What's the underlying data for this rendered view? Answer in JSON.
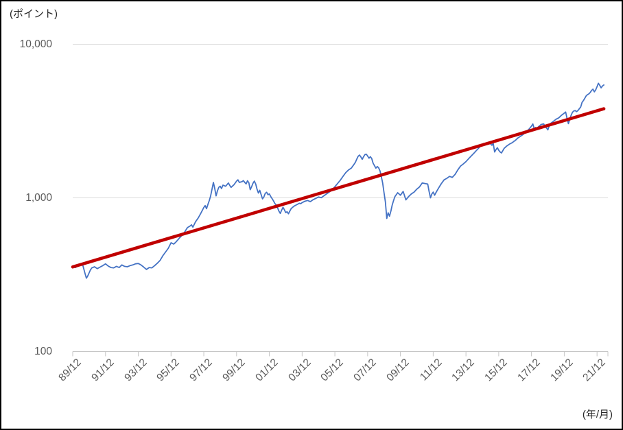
{
  "labels": {
    "y_unit": "(ポイント)",
    "x_unit": "(年/月)"
  },
  "chart_data": {
    "type": "line",
    "title": "",
    "legend": "none",
    "y_axis": {
      "scale": "log",
      "unit_label": "(ポイント)",
      "range": [
        100,
        10000
      ],
      "ticks": [
        {
          "value": 100,
          "label": "100"
        },
        {
          "value": 1000,
          "label": "1,000"
        },
        {
          "value": 10000,
          "label": "10,000"
        }
      ]
    },
    "x_axis": {
      "unit_label": "(年/月)",
      "t_unit": "months since 89/12",
      "tick_interval_months": 24,
      "tick_labels": [
        "89/12",
        "91/12",
        "93/12",
        "95/12",
        "97/12",
        "99/12",
        "01/12",
        "03/12",
        "05/12",
        "07/12",
        "09/12",
        "11/12",
        "13/12",
        "15/12",
        "17/12",
        "19/12",
        "21/12"
      ]
    },
    "grid": {
      "horizontal": true,
      "vertical": false
    },
    "series": [
      {
        "name": "index-line",
        "color": "#4472C4",
        "style": "jagged monthly line",
        "points": [
          [
            0,
            357
          ],
          [
            2,
            352
          ],
          [
            4,
            362
          ],
          [
            6,
            372
          ],
          [
            7,
            375
          ],
          [
            8,
            348
          ],
          [
            9,
            322
          ],
          [
            10,
            300
          ],
          [
            11,
            310
          ],
          [
            12,
            325
          ],
          [
            13,
            340
          ],
          [
            14,
            350
          ],
          [
            16,
            356
          ],
          [
            18,
            346
          ],
          [
            20,
            354
          ],
          [
            22,
            362
          ],
          [
            24,
            372
          ],
          [
            26,
            360
          ],
          [
            28,
            352
          ],
          [
            30,
            350
          ],
          [
            32,
            358
          ],
          [
            34,
            352
          ],
          [
            36,
            366
          ],
          [
            38,
            358
          ],
          [
            40,
            356
          ],
          [
            42,
            362
          ],
          [
            44,
            366
          ],
          [
            46,
            372
          ],
          [
            48,
            374
          ],
          [
            50,
            366
          ],
          [
            52,
            354
          ],
          [
            54,
            342
          ],
          [
            56,
            352
          ],
          [
            58,
            350
          ],
          [
            60,
            362
          ],
          [
            62,
            376
          ],
          [
            64,
            392
          ],
          [
            66,
            420
          ],
          [
            68,
            444
          ],
          [
            70,
            470
          ],
          [
            72,
            510
          ],
          [
            74,
            500
          ],
          [
            76,
            520
          ],
          [
            78,
            546
          ],
          [
            80,
            570
          ],
          [
            82,
            600
          ],
          [
            84,
            640
          ],
          [
            86,
            656
          ],
          [
            87,
            668
          ],
          [
            88,
            645
          ],
          [
            90,
            700
          ],
          [
            92,
            742
          ],
          [
            94,
            800
          ],
          [
            96,
            865
          ],
          [
            97,
            890
          ],
          [
            98,
            850
          ],
          [
            99,
            905
          ],
          [
            100,
            960
          ],
          [
            101,
            1030
          ],
          [
            102,
            1140
          ],
          [
            103,
            1260
          ],
          [
            104,
            1150
          ],
          [
            105,
            1030
          ],
          [
            106,
            1110
          ],
          [
            107,
            1170
          ],
          [
            108,
            1190
          ],
          [
            109,
            1150
          ],
          [
            110,
            1210
          ],
          [
            112,
            1190
          ],
          [
            114,
            1250
          ],
          [
            115,
            1205
          ],
          [
            116,
            1170
          ],
          [
            118,
            1215
          ],
          [
            120,
            1285
          ],
          [
            121,
            1310
          ],
          [
            122,
            1260
          ],
          [
            124,
            1275
          ],
          [
            125,
            1295
          ],
          [
            126,
            1260
          ],
          [
            127,
            1232
          ],
          [
            128,
            1292
          ],
          [
            129,
            1255
          ],
          [
            130,
            1130
          ],
          [
            131,
            1180
          ],
          [
            132,
            1245
          ],
          [
            133,
            1285
          ],
          [
            134,
            1230
          ],
          [
            135,
            1140
          ],
          [
            136,
            1075
          ],
          [
            137,
            1120
          ],
          [
            138,
            1050
          ],
          [
            139,
            985
          ],
          [
            140,
            1015
          ],
          [
            141,
            1070
          ],
          [
            142,
            1088
          ],
          [
            143,
            1048
          ],
          [
            144,
            1060
          ],
          [
            145,
            1020
          ],
          [
            146,
            990
          ],
          [
            147,
            958
          ],
          [
            148,
            920
          ],
          [
            149,
            900
          ],
          [
            150,
            862
          ],
          [
            151,
            820
          ],
          [
            152,
            792
          ],
          [
            153,
            832
          ],
          [
            154,
            868
          ],
          [
            155,
            838
          ],
          [
            156,
            802
          ],
          [
            157,
            812
          ],
          [
            158,
            788
          ],
          [
            159,
            820
          ],
          [
            160,
            852
          ],
          [
            162,
            882
          ],
          [
            164,
            902
          ],
          [
            166,
            922
          ],
          [
            167,
            916
          ],
          [
            168,
            932
          ],
          [
            170,
            950
          ],
          [
            172,
            962
          ],
          [
            174,
            945
          ],
          [
            176,
            972
          ],
          [
            178,
            992
          ],
          [
            180,
            1012
          ],
          [
            182,
            1002
          ],
          [
            184,
            1032
          ],
          [
            186,
            1062
          ],
          [
            188,
            1092
          ],
          [
            190,
            1130
          ],
          [
            192,
            1182
          ],
          [
            194,
            1242
          ],
          [
            196,
            1302
          ],
          [
            198,
            1382
          ],
          [
            200,
            1462
          ],
          [
            202,
            1520
          ],
          [
            204,
            1562
          ],
          [
            206,
            1650
          ],
          [
            207,
            1702
          ],
          [
            208,
            1782
          ],
          [
            209,
            1862
          ],
          [
            210,
            1900
          ],
          [
            211,
            1850
          ],
          [
            212,
            1782
          ],
          [
            213,
            1852
          ],
          [
            214,
            1912
          ],
          [
            215,
            1922
          ],
          [
            216,
            1872
          ],
          [
            217,
            1812
          ],
          [
            218,
            1852
          ],
          [
            219,
            1802
          ],
          [
            220,
            1680
          ],
          [
            221,
            1620
          ],
          [
            222,
            1560
          ],
          [
            223,
            1600
          ],
          [
            224,
            1570
          ],
          [
            225,
            1500
          ],
          [
            226,
            1380
          ],
          [
            227,
            1250
          ],
          [
            228,
            1080
          ],
          [
            229,
            940
          ],
          [
            230,
            735
          ],
          [
            231,
            800
          ],
          [
            232,
            760
          ],
          [
            233,
            820
          ],
          [
            234,
            900
          ],
          [
            235,
            960
          ],
          [
            236,
            1020
          ],
          [
            238,
            1080
          ],
          [
            240,
            1040
          ],
          [
            242,
            1100
          ],
          [
            244,
            970
          ],
          [
            246,
            1020
          ],
          [
            248,
            1060
          ],
          [
            250,
            1090
          ],
          [
            252,
            1140
          ],
          [
            254,
            1180
          ],
          [
            256,
            1250
          ],
          [
            258,
            1240
          ],
          [
            260,
            1230
          ],
          [
            261,
            1100
          ],
          [
            262,
            1000
          ],
          [
            263,
            1060
          ],
          [
            264,
            1090
          ],
          [
            265,
            1040
          ],
          [
            266,
            1080
          ],
          [
            267,
            1120
          ],
          [
            268,
            1160
          ],
          [
            270,
            1240
          ],
          [
            272,
            1310
          ],
          [
            274,
            1340
          ],
          [
            276,
            1380
          ],
          [
            278,
            1360
          ],
          [
            280,
            1420
          ],
          [
            282,
            1520
          ],
          [
            284,
            1610
          ],
          [
            286,
            1660
          ],
          [
            288,
            1720
          ],
          [
            290,
            1800
          ],
          [
            292,
            1880
          ],
          [
            294,
            1960
          ],
          [
            296,
            2050
          ],
          [
            298,
            2140
          ],
          [
            300,
            2220
          ],
          [
            301,
            2260
          ],
          [
            302,
            2230
          ],
          [
            303,
            2270
          ],
          [
            304,
            2240
          ],
          [
            305,
            2280
          ],
          [
            306,
            2250
          ],
          [
            307,
            2200
          ],
          [
            308,
            2260
          ],
          [
            309,
            1990
          ],
          [
            310,
            2060
          ],
          [
            311,
            2120
          ],
          [
            312,
            2040
          ],
          [
            313,
            1990
          ],
          [
            314,
            1960
          ],
          [
            316,
            2100
          ],
          [
            318,
            2180
          ],
          [
            320,
            2240
          ],
          [
            322,
            2290
          ],
          [
            323,
            2330
          ],
          [
            324,
            2360
          ],
          [
            326,
            2450
          ],
          [
            328,
            2520
          ],
          [
            330,
            2590
          ],
          [
            332,
            2690
          ],
          [
            334,
            2790
          ],
          [
            336,
            2930
          ],
          [
            337,
            3030
          ],
          [
            338,
            2820
          ],
          [
            339,
            2870
          ],
          [
            340,
            2820
          ],
          [
            341,
            2900
          ],
          [
            342,
            2950
          ],
          [
            343,
            3000
          ],
          [
            344,
            3020
          ],
          [
            345,
            3030
          ],
          [
            346,
            2900
          ],
          [
            347,
            2850
          ],
          [
            348,
            2770
          ],
          [
            349,
            2950
          ],
          [
            350,
            3050
          ],
          [
            352,
            3150
          ],
          [
            354,
            3250
          ],
          [
            356,
            3320
          ],
          [
            358,
            3450
          ],
          [
            360,
            3560
          ],
          [
            361,
            3620
          ],
          [
            362,
            3300
          ],
          [
            363,
            3040
          ],
          [
            364,
            3250
          ],
          [
            365,
            3450
          ],
          [
            366,
            3600
          ],
          [
            367,
            3680
          ],
          [
            368,
            3700
          ],
          [
            369,
            3640
          ],
          [
            370,
            3700
          ],
          [
            371,
            3800
          ],
          [
            372,
            3900
          ],
          [
            373,
            4180
          ],
          [
            374,
            4300
          ],
          [
            375,
            4450
          ],
          [
            376,
            4600
          ],
          [
            377,
            4700
          ],
          [
            378,
            4750
          ],
          [
            379,
            4850
          ],
          [
            380,
            5000
          ],
          [
            381,
            5100
          ],
          [
            382,
            4900
          ],
          [
            383,
            5050
          ],
          [
            384,
            5300
          ],
          [
            385,
            5570
          ],
          [
            386,
            5400
          ],
          [
            387,
            5200
          ],
          [
            388,
            5350
          ],
          [
            389,
            5430
          ]
        ]
      },
      {
        "name": "trend-line",
        "color": "#C00000",
        "style": "straight log-linear trend",
        "points": [
          [
            0,
            355
          ],
          [
            389,
            3800
          ]
        ]
      }
    ],
    "style_colors": {
      "gridline": "#d9d9d9",
      "axis": "#c6c6c6",
      "tick_label": "#595959",
      "unit_label": "#262626",
      "frame_border": "#000000"
    }
  }
}
